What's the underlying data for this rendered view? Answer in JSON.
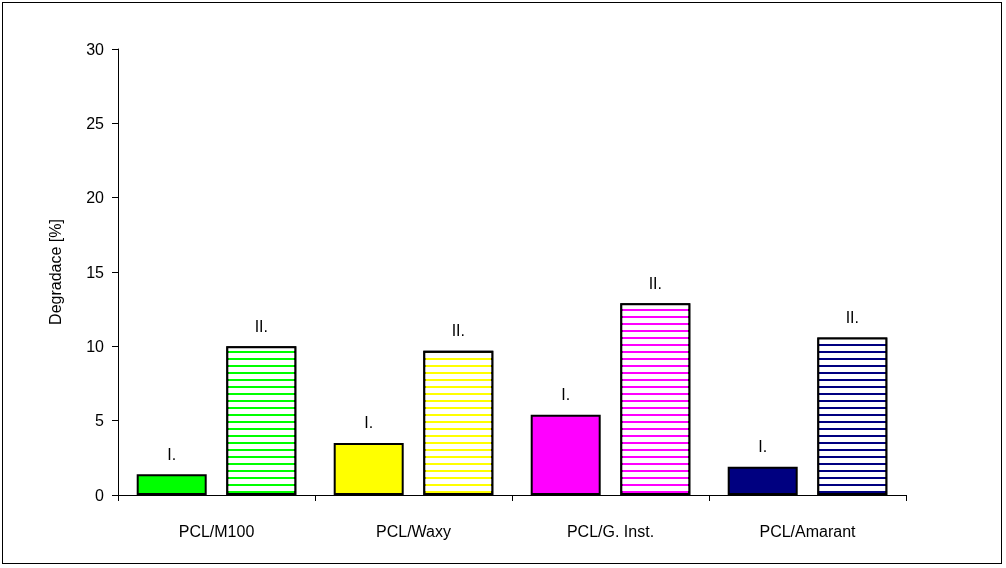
{
  "chart_data": {
    "type": "bar",
    "ylabel": "Degradace [%]",
    "categories": [
      "PCL/M100",
      "PCL/Waxy",
      "PCL/G. Inst.",
      "PCL/Amarant"
    ],
    "series": [
      {
        "name": "I.",
        "colors": [
          "#00ff00",
          "#ffff00",
          "#ff00ff",
          "#000080"
        ],
        "values": [
          1.4,
          3.5,
          5.4,
          1.9
        ]
      },
      {
        "name": "II.",
        "colors": [
          "#00ff00",
          "#ffff00",
          "#ff00ff",
          "#000080"
        ],
        "values": [
          10.0,
          9.7,
          12.9,
          10.6
        ]
      }
    ],
    "ylim": [
      0,
      30
    ],
    "yticks": [
      0,
      5,
      10,
      15,
      20,
      25,
      30
    ],
    "grid": false,
    "legend": false
  }
}
